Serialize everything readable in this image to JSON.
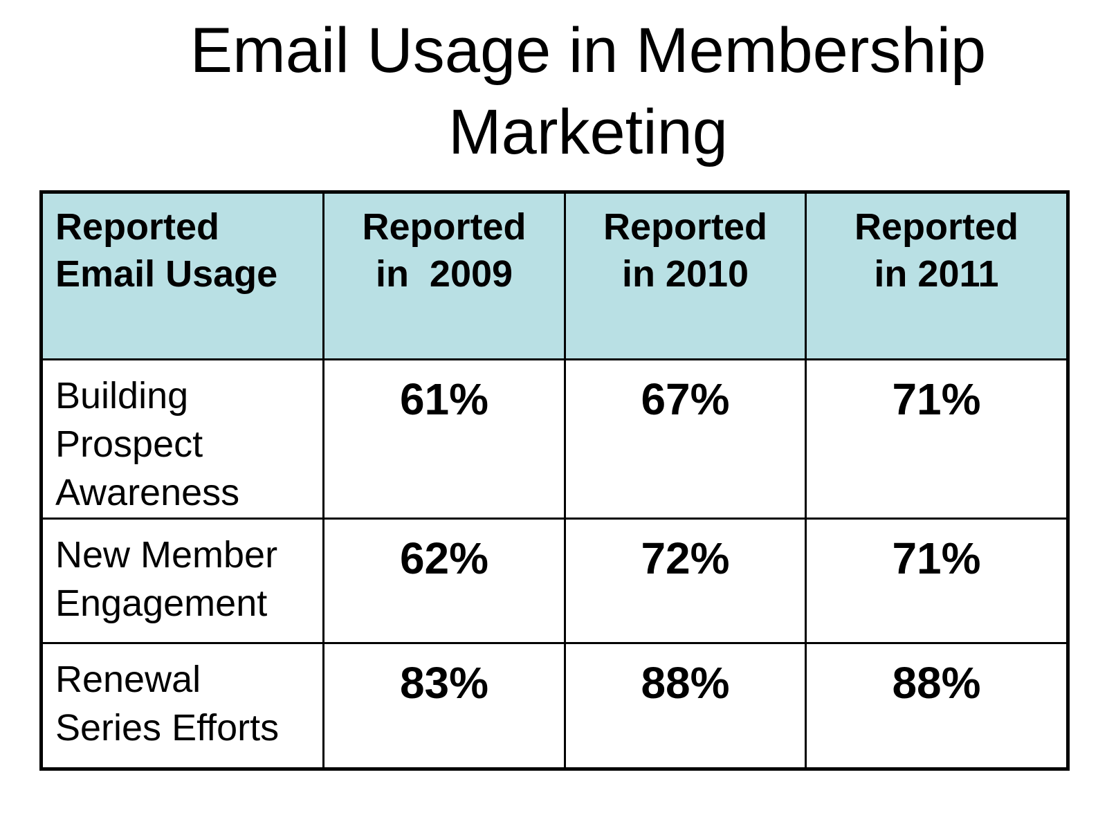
{
  "title": {
    "line1": "Email Usage in Membership",
    "line2": "Marketing"
  },
  "table": {
    "headers": [
      {
        "line1": "Reported",
        "line2": "Email Usage"
      },
      {
        "line1": "Reported",
        "line2": "in  2009"
      },
      {
        "line1": "Reported",
        "line2": "in 2010"
      },
      {
        "line1": "Reported",
        "line2": "in 2011"
      }
    ],
    "rows": [
      {
        "label": [
          "Building",
          "Prospect",
          "Awareness"
        ],
        "values": [
          "61%",
          "67%",
          "71%"
        ]
      },
      {
        "label": [
          "New Member",
          "Engagement"
        ],
        "values": [
          "62%",
          "72%",
          "71%"
        ]
      },
      {
        "label": [
          "Renewal",
          "Series Efforts"
        ],
        "values": [
          "83%",
          "88%",
          "88%"
        ]
      }
    ]
  },
  "colors": {
    "header_background": "#b9e0e4",
    "border": "#000000",
    "text": "#000000"
  }
}
